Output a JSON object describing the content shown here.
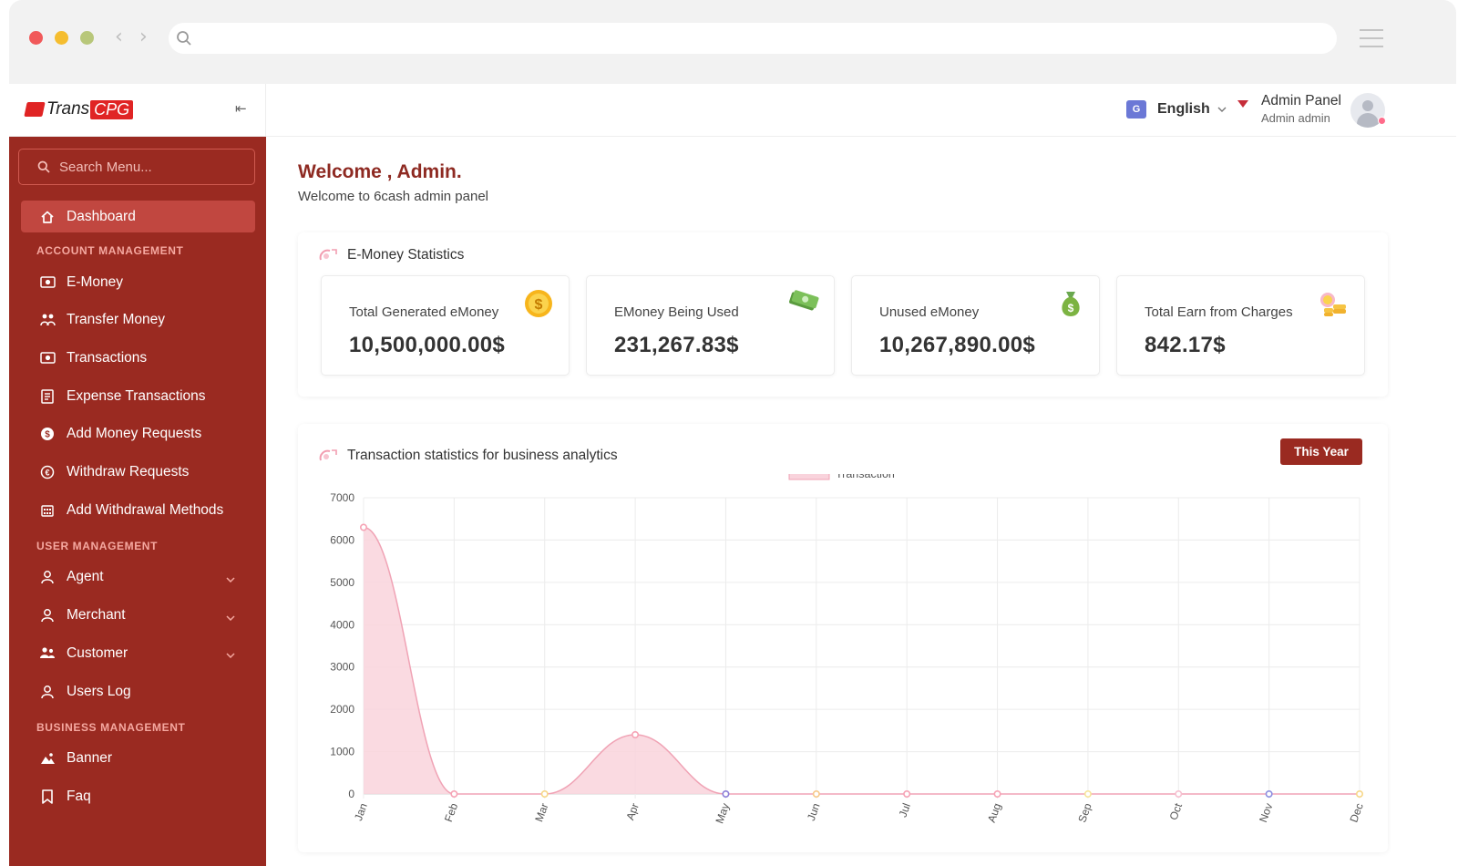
{
  "sidebar": {
    "brand": {
      "logo_text_1": "Trans",
      "logo_text_2": "CPG"
    },
    "search_placeholder": "Search Menu...",
    "dashboard_label": "Dashboard",
    "sections": [
      {
        "title": "ACCOUNT MANAGEMENT",
        "items": [
          {
            "label": "E-Money",
            "icon": "money-icon"
          },
          {
            "label": "Transfer Money",
            "icon": "transfer-icon"
          },
          {
            "label": "Transactions",
            "icon": "transactions-icon"
          },
          {
            "label": "Expense Transactions",
            "icon": "receipt-icon"
          },
          {
            "label": "Add Money Requests",
            "icon": "add-money-icon"
          },
          {
            "label": "Withdraw Requests",
            "icon": "withdraw-icon"
          },
          {
            "label": "Add Withdrawal Methods",
            "icon": "bank-icon"
          }
        ]
      },
      {
        "title": "USER MANAGEMENT",
        "items": [
          {
            "label": "Agent",
            "icon": "user-icon",
            "expandable": true
          },
          {
            "label": "Merchant",
            "icon": "user-icon",
            "expandable": true
          },
          {
            "label": "Customer",
            "icon": "users-icon",
            "expandable": true
          },
          {
            "label": "Users Log",
            "icon": "user-icon"
          }
        ]
      },
      {
        "title": "BUSINESS MANAGEMENT",
        "items": [
          {
            "label": "Banner",
            "icon": "image-icon"
          },
          {
            "label": "Faq",
            "icon": "bookmark-icon"
          }
        ]
      }
    ]
  },
  "topbar": {
    "language": "English",
    "admin_title": "Admin Panel",
    "admin_name": "Admin admin"
  },
  "main": {
    "welcome_title": "Welcome , Admin.",
    "welcome_sub": "Welcome to 6cash admin panel",
    "emoney_stats": {
      "title": "E-Money Statistics",
      "cards": [
        {
          "label": "Total Generated eMoney",
          "value": "10,500,000.00$",
          "icon": "coin-icon"
        },
        {
          "label": "EMoney Being Used",
          "value": "231,267.83$",
          "icon": "cash-icon"
        },
        {
          "label": "Unused eMoney",
          "value": "10,267,890.00$",
          "icon": "money-bag-icon"
        },
        {
          "label": "Total Earn from Charges",
          "value": "842.17$",
          "icon": "coins-icon"
        }
      ]
    },
    "transaction_stats": {
      "title": "Transaction statistics for business analytics",
      "filter_button": "This Year"
    }
  },
  "chart_data": {
    "type": "area",
    "title": "",
    "xlabel": "",
    "ylabel": "",
    "categories": [
      "Jan",
      "Feb",
      "Mar",
      "Apr",
      "May",
      "Jun",
      "Jul",
      "Aug",
      "Sep",
      "Oct",
      "Nov",
      "Dec"
    ],
    "series": [
      {
        "name": "Transaction",
        "values": [
          6300,
          0,
          0,
          1400,
          0,
          0,
          0,
          0,
          0,
          0,
          0,
          0
        ]
      }
    ],
    "ylim": [
      0,
      7000
    ],
    "yticks": [
      0,
      1000,
      2000,
      3000,
      4000,
      5000,
      6000,
      7000
    ],
    "grid": true,
    "legend": "top-center",
    "fill_color": "#f9d3dc",
    "line_color": "#f0a3b5",
    "point_colors": [
      "#f6a3b5",
      "#f6a3b5",
      "#f7d788",
      "#f6a3b5",
      "#8d7fd8",
      "#f7c98a",
      "#f6a3b5",
      "#f6a3b5",
      "#f7e49a",
      "#f6c0d0",
      "#8d8fe0",
      "#f7d788"
    ]
  }
}
